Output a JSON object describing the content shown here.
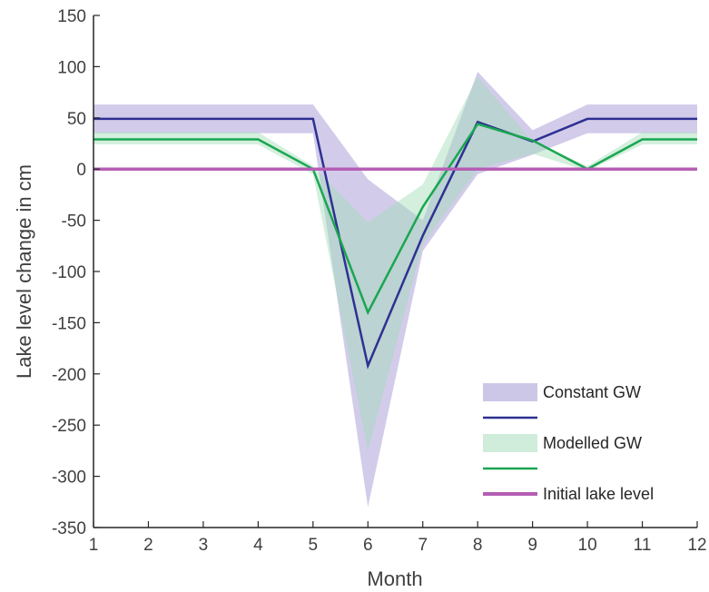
{
  "chart_data": {
    "type": "line",
    "title": "",
    "xlabel": "Month",
    "ylabel": "Lake level change in cm",
    "xlim": [
      1,
      12
    ],
    "ylim": [
      -350,
      150
    ],
    "x_ticks": [
      1,
      2,
      3,
      4,
      5,
      6,
      7,
      8,
      9,
      10,
      11,
      12
    ],
    "y_ticks": [
      150,
      100,
      50,
      0,
      -50,
      -100,
      -150,
      -200,
      -250,
      -300,
      -350
    ],
    "grid": false,
    "legend_position": "bottom-right",
    "x": [
      1,
      2,
      3,
      4,
      5,
      6,
      7,
      8,
      9,
      10,
      11,
      12
    ],
    "series": [
      {
        "name": "Constant GW",
        "kind": "band",
        "color": "#9b8fd0",
        "lower": [
          35,
          35,
          35,
          35,
          35,
          -330,
          -80,
          -5,
          14,
          35,
          35,
          35
        ],
        "upper": [
          63,
          63,
          63,
          63,
          63,
          -10,
          -50,
          95,
          38,
          63,
          63,
          63
        ]
      },
      {
        "name": "",
        "kind": "line",
        "color": "#2e3192",
        "values": [
          49,
          49,
          49,
          49,
          49,
          -192,
          -65,
          46,
          27,
          49,
          49,
          49
        ]
      },
      {
        "name": "Modelled GW",
        "kind": "band",
        "color": "#9fdcb6",
        "lower": [
          24,
          24,
          24,
          24,
          -5,
          -275,
          -73,
          0,
          15,
          -2,
          24,
          24
        ],
        "upper": [
          36,
          36,
          36,
          36,
          3,
          -52,
          -15,
          90,
          27,
          3,
          36,
          36
        ]
      },
      {
        "name": "",
        "kind": "line",
        "color": "#1aa651",
        "values": [
          29,
          29,
          29,
          29,
          0,
          -140,
          -37,
          44,
          28,
          0,
          29,
          29
        ]
      },
      {
        "name": "Initial lake level",
        "kind": "line",
        "color": "#b55eb4",
        "values": [
          0,
          0,
          0,
          0,
          0,
          0,
          0,
          0,
          0,
          0,
          0,
          0
        ]
      }
    ],
    "legend": [
      {
        "label": "Constant GW",
        "kind": "band",
        "color": "#9b8fd0"
      },
      {
        "label": "",
        "kind": "line",
        "color": "#2e3192"
      },
      {
        "label": "Modelled GW",
        "kind": "band",
        "color": "#9fdcb6"
      },
      {
        "label": "",
        "kind": "line",
        "color": "#1aa651"
      },
      {
        "label": "Initial lake level",
        "kind": "line",
        "color": "#b55eb4"
      }
    ]
  }
}
